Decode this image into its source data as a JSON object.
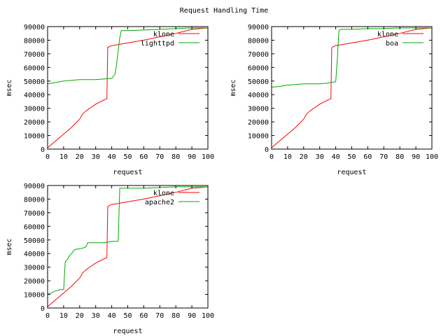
{
  "figure": {
    "title": "Request Handling Time"
  },
  "chart_data": [
    {
      "type": "line",
      "xlabel": "request",
      "ylabel": "msec",
      "xlim": [
        0,
        100
      ],
      "ylim": [
        0,
        90000
      ],
      "xticks": [
        0,
        10,
        20,
        30,
        40,
        50,
        60,
        70,
        80,
        90,
        100
      ],
      "yticks": [
        0,
        10000,
        20000,
        30000,
        40000,
        50000,
        60000,
        70000,
        80000,
        90000
      ],
      "legend_position": "top-right",
      "series": [
        {
          "name": "klone",
          "color": "#ff0000",
          "x": [
            0,
            5,
            10,
            15,
            20,
            22,
            25,
            30,
            35,
            37,
            37.5,
            38,
            40,
            45,
            50,
            60,
            70,
            80,
            90,
            100
          ],
          "y": [
            1000,
            6000,
            11000,
            16000,
            22000,
            26000,
            29000,
            33000,
            36000,
            37000,
            75000,
            75000,
            76000,
            77000,
            78000,
            80000,
            82500,
            85000,
            88000,
            89000
          ]
        },
        {
          "name": "lighttpd",
          "color": "#00aa00",
          "x": [
            0,
            5,
            10,
            15,
            20,
            25,
            30,
            35,
            40,
            42,
            43,
            44,
            45,
            46,
            50,
            60,
            70,
            80,
            90,
            100
          ],
          "y": [
            48000,
            49000,
            50000,
            50500,
            51000,
            51000,
            51000,
            51500,
            52000,
            55000,
            62000,
            72000,
            82000,
            87000,
            87000,
            87500,
            88000,
            88500,
            89000,
            89000
          ]
        }
      ]
    },
    {
      "type": "line",
      "xlabel": "request",
      "ylabel": "msec",
      "xlim": [
        0,
        100
      ],
      "ylim": [
        0,
        90000
      ],
      "xticks": [
        0,
        10,
        20,
        30,
        40,
        50,
        60,
        70,
        80,
        90,
        100
      ],
      "yticks": [
        0,
        10000,
        20000,
        30000,
        40000,
        50000,
        60000,
        70000,
        80000,
        90000
      ],
      "legend_position": "top-right",
      "series": [
        {
          "name": "klone",
          "color": "#ff0000",
          "x": [
            0,
            5,
            10,
            15,
            20,
            22,
            25,
            30,
            35,
            37,
            37.5,
            38,
            40,
            45,
            50,
            60,
            70,
            80,
            90,
            100
          ],
          "y": [
            1000,
            6000,
            11000,
            16000,
            22000,
            26000,
            29000,
            33000,
            36000,
            37000,
            74000,
            75000,
            76000,
            77000,
            78000,
            80000,
            82500,
            85000,
            88000,
            89000
          ]
        },
        {
          "name": "boa",
          "color": "#00aa00",
          "x": [
            0,
            5,
            10,
            15,
            20,
            25,
            30,
            35,
            40,
            41,
            42,
            43,
            50,
            60,
            70,
            80,
            90,
            100
          ],
          "y": [
            45500,
            46000,
            47000,
            47500,
            48000,
            48000,
            48000,
            48500,
            49500,
            66000,
            87000,
            88000,
            88000,
            88500,
            88500,
            89000,
            89000,
            89000
          ]
        }
      ]
    },
    {
      "type": "line",
      "xlabel": "request",
      "ylabel": "msec",
      "xlim": [
        0,
        100
      ],
      "ylim": [
        0,
        90000
      ],
      "xticks": [
        0,
        10,
        20,
        30,
        40,
        50,
        60,
        70,
        80,
        90,
        100
      ],
      "yticks": [
        0,
        10000,
        20000,
        30000,
        40000,
        50000,
        60000,
        70000,
        80000,
        90000
      ],
      "legend_position": "top-right",
      "series": [
        {
          "name": "klone",
          "color": "#ff0000",
          "x": [
            0,
            5,
            10,
            15,
            20,
            22,
            25,
            30,
            35,
            37,
            37.5,
            38,
            40,
            45,
            50,
            60,
            70,
            80,
            90,
            100
          ],
          "y": [
            1000,
            6000,
            11000,
            16000,
            22000,
            26000,
            29000,
            33000,
            36000,
            37000,
            74000,
            75000,
            76000,
            77000,
            78000,
            80000,
            82500,
            85000,
            88000,
            89000
          ]
        },
        {
          "name": "apache2",
          "color": "#00aa00",
          "x": [
            0,
            2,
            5,
            8,
            10,
            11,
            12,
            14,
            15,
            17,
            20,
            22,
            24,
            25,
            27,
            30,
            35,
            38,
            40,
            44,
            45,
            50,
            60,
            70,
            80,
            90,
            100
          ],
          "y": [
            10000,
            11000,
            12500,
            13500,
            13500,
            34000,
            35000,
            39000,
            40000,
            43000,
            43500,
            44000,
            45000,
            48000,
            48000,
            48000,
            48000,
            48500,
            49000,
            49000,
            88000,
            88000,
            88000,
            88500,
            89000,
            89000,
            89000
          ]
        }
      ]
    }
  ]
}
